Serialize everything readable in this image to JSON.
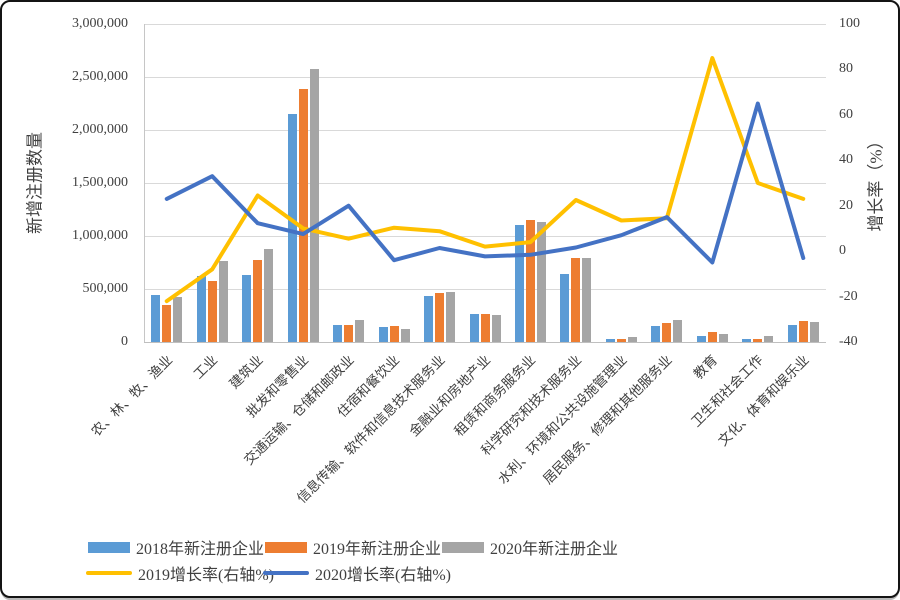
{
  "chart_data": {
    "type": "bar+line combo",
    "title": "",
    "grid": true,
    "legend_position": "bottom",
    "categories": [
      "农、林、牧、渔业",
      "工业",
      "建筑业",
      "批发和零售业",
      "交通运输、仓储和邮政业",
      "住宿和餐饮业",
      "信息传输、软件和信息技术服务业",
      "金融业和房地产业",
      "租赁和商务服务业",
      "科学研究和技术服务业",
      "水利、环境和公共设施管理业",
      "居民服务、修理和其他服务业",
      "教育",
      "卫生和社会工作",
      "文化、体育和娱乐业"
    ],
    "series": [
      {
        "name": "2018年新注册企业",
        "type": "bar",
        "axis": "left",
        "color": "#5B9BD5",
        "values": [
          440000,
          620000,
          630000,
          2150000,
          160000,
          145000,
          430000,
          260000,
          1105000,
          640000,
          30000,
          155000,
          55000,
          25000,
          165000
        ]
      },
      {
        "name": "2019年新注册企业",
        "type": "bar",
        "axis": "left",
        "color": "#ED7D31",
        "values": [
          345000,
          575000,
          770000,
          2390000,
          165000,
          148000,
          465000,
          262000,
          1155000,
          795000,
          30000,
          180000,
          95000,
          25000,
          200000
        ]
      },
      {
        "name": "2020年新注册企业",
        "type": "bar",
        "axis": "left",
        "color": "#A5A5A5",
        "values": [
          420000,
          760000,
          875000,
          2575000,
          210000,
          127000,
          470000,
          258000,
          1130000,
          790000,
          46000,
          210000,
          80000,
          55000,
          185000
        ]
      },
      {
        "name": "2019增长率(右轴%)",
        "type": "line",
        "axis": "right",
        "color": "#FFC000",
        "values": [
          -22,
          -8,
          24.5,
          10,
          5.5,
          10.3,
          8.8,
          2,
          4,
          22.5,
          13.5,
          14.5,
          85,
          30,
          23
        ]
      },
      {
        "name": "2020增长率(右轴%)",
        "type": "line",
        "axis": "right",
        "color": "#4472C4",
        "values": [
          23,
          33,
          12.3,
          7.5,
          20,
          -4,
          1.4,
          -2.3,
          -1.6,
          1.6,
          7,
          15,
          -5,
          65,
          -3
        ]
      }
    ],
    "left_axis": {
      "title": "新增注册数量",
      "min": 0,
      "max": 3000000,
      "step": 500000,
      "tick_labels": [
        "0",
        "500,000",
        "1,000,000",
        "1,500,000",
        "2,000,000",
        "2,500,000",
        "3,000,000"
      ]
    },
    "right_axis": {
      "title": "增长率（%）",
      "min": -40,
      "max": 100,
      "step": 20,
      "tick_labels": [
        "-40",
        "-20",
        "0",
        "20",
        "40",
        "60",
        "80",
        "100"
      ]
    },
    "gridline_color": "#D9D9D9"
  }
}
